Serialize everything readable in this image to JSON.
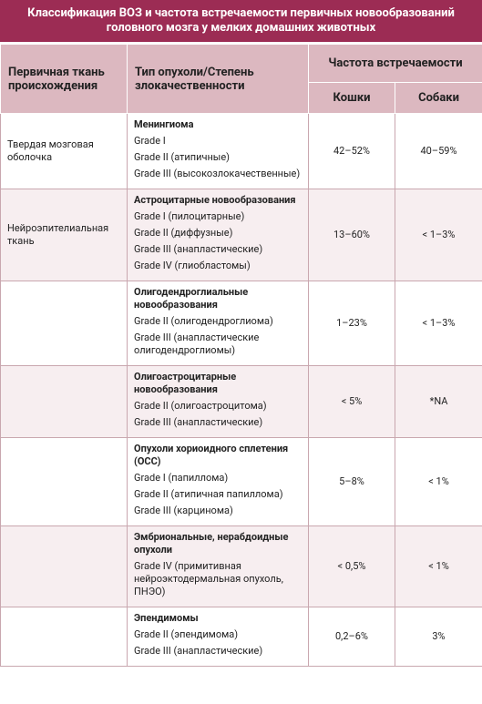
{
  "header": {
    "title": "Классификация ВОЗ и частота встречаемости первичных новообразований головного мозга у мелких домашних животных"
  },
  "table": {
    "columns": {
      "tissue": "Первичная ткань происхождения",
      "tumor": "Тип опухоли/Степень злокачественности",
      "frequency": "Частота встречаемости",
      "cats": "Кошки",
      "dogs": "Собаки"
    },
    "rows": [
      {
        "tissue": "Твердая мозговая оболочка",
        "tumor": "Менингиома",
        "grades": [
          "Grade I",
          "Grade II (атипичные)",
          "Grade III (высокозлокачественные)"
        ],
        "cats": "42–52%",
        "dogs": "40–59%"
      },
      {
        "tissue": "Нейроэпителиальная ткань",
        "tumor": "Астроцитарные новообразования",
        "grades": [
          "Grade I (пилоцитарные)",
          "Grade II (диффузные)",
          "Grade III (анапластические)",
          "Grade IV (глиобластомы)"
        ],
        "cats": "13–60%",
        "dogs": "< 1–3%"
      },
      {
        "tumor": "Олигодендроглиальные новообразования",
        "grades": [
          "Grade II (олигодендроглиома)",
          "Grade III (анапластические олигодендроглиомы)"
        ],
        "cats": "1–23%",
        "dogs": "< 1–3%"
      },
      {
        "tumor": "Олигоастроцитарные новообразования",
        "grades": [
          "Grade II (олигоастроцитома)",
          "Grade III (анапластические)"
        ],
        "cats": "< 5%",
        "dogs": "*NA"
      },
      {
        "tumor": "Опухоли хориоидного сплетения (ОСС)",
        "grades": [
          "Grade I (папиллома)",
          "Grade II (атипичная папиллома)",
          "Grade III (карцинома)"
        ],
        "cats": "5–8%",
        "dogs": "< 1%"
      },
      {
        "tumor": "Эмбриональные, нерабдоидные опухоли",
        "grades": [
          "Grade IV (примитивная нейроэктодермальная опухоль, ПНЭО)"
        ],
        "cats": "< 0,5%",
        "dogs": "< 1%"
      },
      {
        "tumor": "Эпендимомы",
        "grades": [
          "Grade II (эпендимома)",
          "Grade III (анапластические)"
        ],
        "cats": "0,2–6%",
        "dogs": "3%"
      }
    ]
  }
}
